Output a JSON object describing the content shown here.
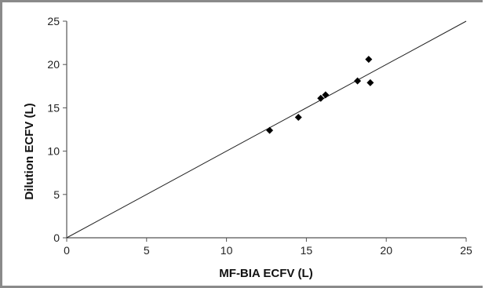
{
  "chart_data": {
    "type": "scatter",
    "xlabel": "MF-BIA ECFV (L)",
    "ylabel": "Dilution ECFV (L)",
    "xlim": [
      0,
      25
    ],
    "ylim": [
      0,
      25
    ],
    "x_ticks": [
      0,
      5,
      10,
      15,
      20,
      25
    ],
    "y_ticks": [
      0,
      5,
      10,
      15,
      20,
      25
    ],
    "grid": false,
    "legend": "none",
    "marker": "diamond",
    "marker_color": "#000000",
    "reference_line": {
      "type": "identity",
      "from": [
        0,
        0
      ],
      "to": [
        25,
        25
      ]
    },
    "series": [
      {
        "x": [
          12.7,
          14.5,
          15.9,
          16.2,
          18.2,
          18.9,
          19.0
        ],
        "y": [
          12.4,
          13.9,
          16.1,
          16.5,
          18.1,
          20.6,
          17.9
        ]
      }
    ]
  }
}
